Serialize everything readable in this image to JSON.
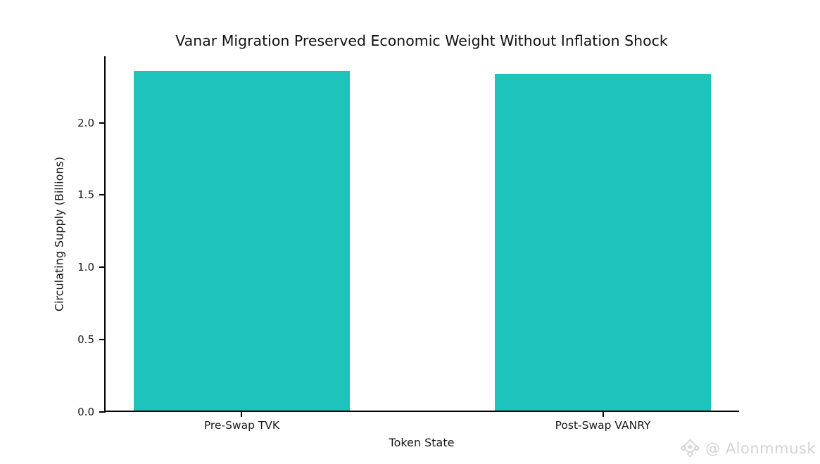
{
  "chart_data": {
    "type": "bar",
    "title": "Vanar Migration Preserved Economic Weight Without Inflation Shock",
    "xlabel": "Token State",
    "ylabel": "Circulating Supply (Billions)",
    "categories": [
      "Pre-Swap TVK",
      "Post-Swap VANRY"
    ],
    "values": [
      2.35,
      2.33
    ],
    "ylim": [
      0,
      2.46
    ],
    "yticks": [
      0.0,
      0.5,
      1.0,
      1.5,
      2.0
    ],
    "ytick_labels": [
      "0.0",
      "0.5",
      "1.0",
      "1.5",
      "2.0"
    ],
    "bar_color": "#1ec4bc",
    "grid": false,
    "legend_position": "none"
  },
  "watermark": {
    "icon": "binance-diamond-logo",
    "text": "@ Alonmmusk",
    "color": "#d4d4d4"
  }
}
